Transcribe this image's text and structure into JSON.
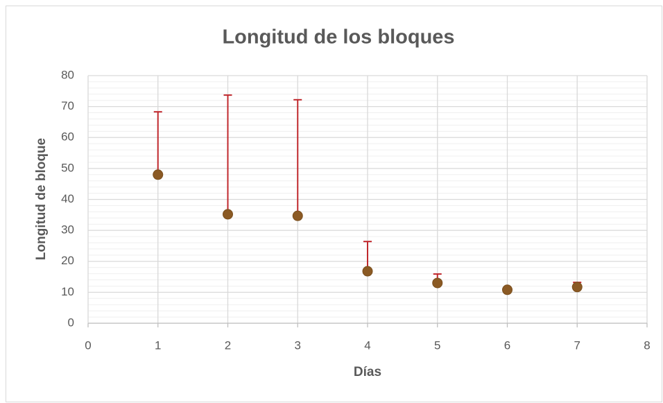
{
  "chart_data": {
    "type": "scatter",
    "title": "Longitud de los bloques",
    "x_label": "Días",
    "y_label": "Longitud de bloque",
    "x": [
      1,
      2,
      3,
      4,
      5,
      6,
      7
    ],
    "series": [
      {
        "color": "#8b5a24",
        "error_color": "#c0282d",
        "values": [
          48,
          35.2,
          34.7,
          16.8,
          13,
          10.8,
          11.7
        ],
        "errors": [
          20.3,
          38.5,
          37.5,
          9.6,
          2.9,
          0,
          1.5
        ]
      }
    ],
    "xlim": [
      0,
      8
    ],
    "xticks": [
      0,
      1,
      2,
      3,
      4,
      5,
      6,
      7,
      8
    ],
    "ylim": [
      0,
      80
    ],
    "yticks": [
      0,
      10,
      20,
      30,
      40,
      50,
      60,
      70,
      80
    ],
    "grid": true,
    "minor_grid": true
  }
}
